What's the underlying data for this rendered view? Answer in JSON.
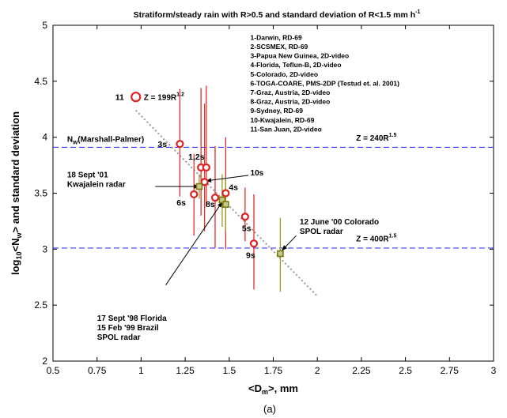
{
  "chart_data": {
    "type": "scatter",
    "title": "Stratiform/steady rain with R>0.5  and standard deviation of R<1.5 mm h",
    "title_sup": "-1",
    "xlabel": "<D",
    "xlabel_sub": "m",
    "xlabel_tail": ">, mm",
    "ylabel": "log",
    "ylabel_sub1": "10",
    "ylabel_mid": "<N",
    "ylabel_sub2": "w",
    "ylabel_tail": "> and standard deviation",
    "caption": "(a)",
    "xlim": [
      0.5,
      3
    ],
    "ylim": [
      2,
      5
    ],
    "xticks": [
      "0.5",
      "0.75",
      "1",
      "1.25",
      "1.5",
      "1.75",
      "2",
      "2.25",
      "2.5",
      "2.75",
      "3"
    ],
    "yticks": [
      "2",
      "2.5",
      "3",
      "3.5",
      "4",
      "4.5",
      "5"
    ],
    "grid": false,
    "reference_lines": [
      {
        "y": 3.91,
        "label": "Z = 240R",
        "sup": "1.5",
        "label_x": 2.22,
        "label_y": 3.97
      },
      {
        "y": 3.01,
        "label": "Z = 400R",
        "sup": "1.5",
        "label_x": 2.22,
        "label_y": 3.07
      }
    ],
    "nw_label": "N",
    "nw_sub": "w",
    "nw_tail": "(Marshall-Palmer)",
    "fit_line": {
      "x": [
        0.97,
        2.0
      ],
      "y": [
        4.24,
        2.58
      ]
    },
    "disdrometer_points": [
      {
        "label": "11",
        "x": 0.97,
        "y": 4.36,
        "err": null
      },
      {
        "label": "3s",
        "x": 1.22,
        "y": 3.94,
        "err": [
          3.47,
          4.43
        ]
      },
      {
        "label": "1,2s",
        "x": 1.34,
        "y": 3.73,
        "err": [
          3.3,
          4.44
        ]
      },
      {
        "label": "",
        "x": 1.37,
        "y": 3.73,
        "err": [
          3.38,
          4.46
        ]
      },
      {
        "label": "6s",
        "x": 1.3,
        "y": 3.49,
        "err": [
          3.12,
          3.85
        ]
      },
      {
        "label": "",
        "x": 1.36,
        "y": 3.6,
        "err": [
          3.16,
          4.3
        ]
      },
      {
        "label": "8s",
        "x": 1.42,
        "y": 3.46,
        "err": [
          3.01,
          3.92
        ]
      },
      {
        "label": "4s",
        "x": 1.48,
        "y": 3.5,
        "err": [
          3.0,
          4.0
        ]
      },
      {
        "label": "5s",
        "x": 1.59,
        "y": 3.29,
        "err": [
          3.07,
          3.55
        ]
      },
      {
        "label": "9s",
        "x": 1.64,
        "y": 3.05,
        "err": [
          2.64,
          3.49
        ]
      }
    ],
    "radar_points": [
      {
        "label": "",
        "x": 1.33,
        "y": 3.56,
        "err": [
          3.45,
          3.67
        ]
      },
      {
        "label": "",
        "x": 1.46,
        "y": 3.44,
        "err": [
          3.2,
          3.67
        ]
      },
      {
        "label": "",
        "x": 1.48,
        "y": 3.4,
        "err": [
          3.16,
          3.64
        ]
      },
      {
        "label": "",
        "x": 1.79,
        "y": 2.96,
        "err": [
          2.62,
          3.28
        ]
      }
    ],
    "legend_entries": [
      "1-Darwin, RD-69",
      "2-SCSMEX, RD-69",
      "3-Papua New Guinea, 2D-video",
      "4-Florida, Teflun-B, 2D-video",
      "5-Colorado, 2D-video",
      "6-TOGA-COARE, PMS-2DP (Testud et. al. 2001)",
      "7-Graz, Austria, 2D-video",
      "8-Graz, Austria, 2D-video",
      "9-Sydney, RD-69",
      "10-Kwajalein, RD-69",
      "11-San Juan, 2D-video"
    ],
    "point11_eq": "Z = 199R",
    "point11_eq_sup": "1.2",
    "annotations": [
      {
        "lines": [
          "18 Sept '01",
          "Kwajalein radar"
        ],
        "text_x": 0.58,
        "text_y": 3.64,
        "from": [
          1.08,
          3.56
        ],
        "to": [
          1.33,
          3.56
        ]
      },
      {
        "lines": [
          "10s"
        ],
        "text_x": 1.62,
        "text_y": 3.66,
        "from": [
          1.61,
          3.66
        ],
        "to": [
          1.37,
          3.61
        ]
      },
      {
        "lines": [
          "17 Sept '98 Florida",
          "15 Feb '99  Brazil",
          "SPOL radar"
        ],
        "text_x": 0.75,
        "text_y": 2.36,
        "from": [
          1.14,
          2.68
        ],
        "to": [
          1.46,
          3.42
        ]
      },
      {
        "lines": [
          "12 June '00 Colorado",
          "SPOL radar"
        ],
        "text_x": 1.9,
        "text_y": 3.22,
        "from": [
          1.88,
          3.12
        ],
        "to": [
          1.8,
          2.99
        ]
      }
    ]
  }
}
